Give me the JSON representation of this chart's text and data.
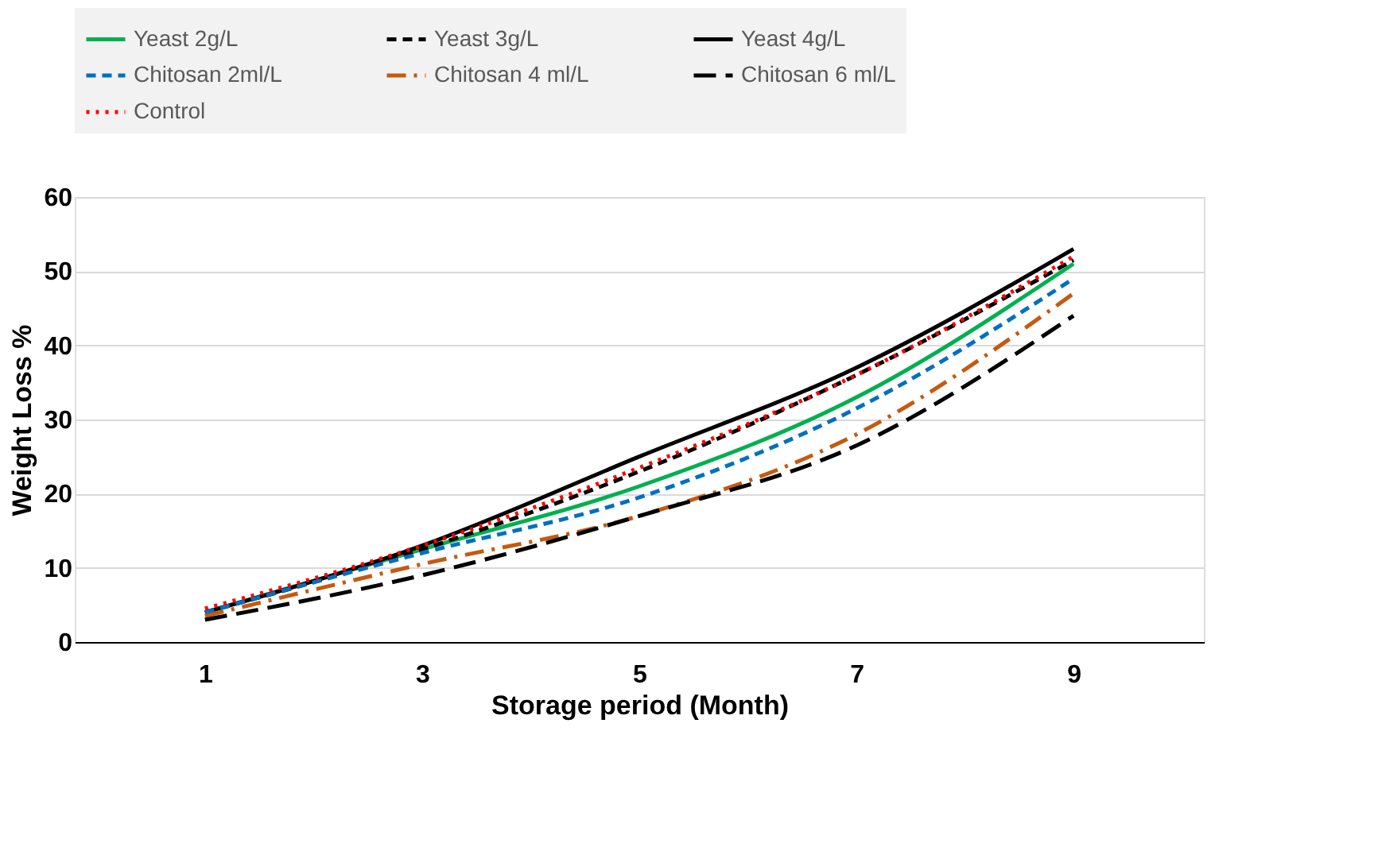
{
  "chart_data": {
    "type": "line",
    "xlabel": "Storage period (Month)",
    "ylabel": "Weight Loss %",
    "categories": [
      "1",
      "3",
      "5",
      "7",
      "9"
    ],
    "ylim": [
      0,
      60
    ],
    "yticks": [
      0,
      10,
      20,
      30,
      40,
      50,
      60
    ],
    "grid": "y",
    "legend": "top",
    "series": [
      {
        "name": "Yeast 2g/L",
        "color": "#00b050",
        "line_style": "solid",
        "values": [
          4,
          12.5,
          21,
          33,
          51
        ]
      },
      {
        "name": "Yeast 3g/L",
        "color": "#000000",
        "line_style": "dashed",
        "values": [
          4,
          12.5,
          23,
          36,
          51.5
        ]
      },
      {
        "name": "Yeast 4g/L",
        "color": "#000000",
        "line_style": "solid",
        "values": [
          4,
          13,
          25,
          37,
          53
        ]
      },
      {
        "name": "Chitosan 2ml/L",
        "color": "#0070c0",
        "line_style": "dashed",
        "values": [
          4,
          12,
          19.5,
          31.5,
          49
        ]
      },
      {
        "name": "Chitosan 4 ml/L",
        "color": "#c55a11",
        "line_style": "dashdot",
        "values": [
          3.5,
          10.5,
          17,
          28,
          47
        ]
      },
      {
        "name": "Chitosan 6 ml/L",
        "color": "#000000",
        "line_style": "longdash",
        "values": [
          3,
          9,
          17,
          26.5,
          44
        ]
      },
      {
        "name": "Control",
        "color": "#ff0000",
        "line_style": "dotted",
        "values": [
          4.5,
          13,
          23.5,
          36,
          52
        ]
      }
    ]
  }
}
